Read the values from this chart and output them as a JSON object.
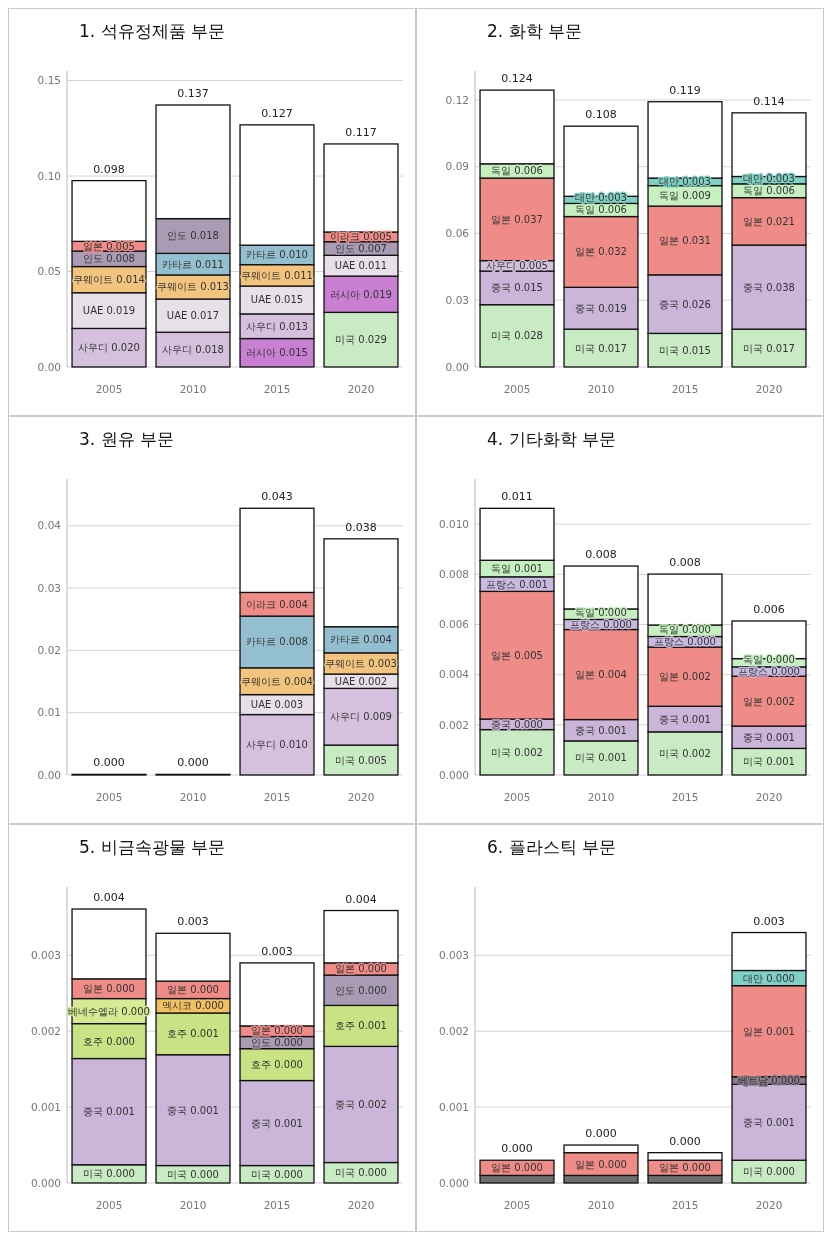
{
  "chart_data": [
    {
      "type": "bar",
      "stacked": true,
      "title": "1. 석유정제품 부문",
      "categories": [
        "2005",
        "2010",
        "2015",
        "2020"
      ],
      "ylim": [
        0,
        0.155
      ],
      "yticks": [
        {
          "value": 0,
          "label": "0.00"
        },
        {
          "value": 0.05,
          "label": "0.05"
        },
        {
          "value": 0.1,
          "label": "0.10"
        },
        {
          "value": 0.15,
          "label": "0.15"
        }
      ],
      "grid": "y",
      "totals": [
        "0.098",
        "0.137",
        "0.127",
        "0.117"
      ],
      "series": [
        {
          "color": "#c8ebc3",
          "values": [
            null,
            null,
            null,
            0.0286
          ],
          "value_labels": [
            null,
            null,
            null,
            "미국 0.029"
          ]
        },
        {
          "color": "#c97fd2",
          "values": [
            null,
            null,
            0.0149,
            0.019
          ],
          "value_labels": [
            null,
            null,
            "러시아 0.015",
            "러시아 0.019"
          ]
        },
        {
          "color": "#d5c0dd",
          "values": [
            0.0202,
            0.0182,
            0.0129,
            null
          ],
          "value_labels": [
            "사우디 0.020",
            "사우디 0.018",
            "사우디 0.013",
            null
          ]
        },
        {
          "color": "#e8e0e8",
          "values": [
            0.0187,
            0.0174,
            0.0146,
            0.0109
          ],
          "value_labels": [
            "UAE 0.019",
            "UAE 0.017",
            "UAE 0.015",
            "UAE 0.011"
          ]
        },
        {
          "color": "#f2c47e",
          "values": [
            0.0137,
            0.0126,
            0.0112,
            null
          ],
          "value_labels": [
            "쿠웨이트 0.014",
            "쿠웨이트 0.013",
            "쿠웨이트 0.011",
            null
          ]
        },
        {
          "color": "#94bfd0",
          "values": [
            null,
            0.0113,
            0.0102,
            null
          ],
          "value_labels": [
            null,
            "카타르 0.011",
            "카타르 0.010",
            null
          ]
        },
        {
          "color": "#a99bb3",
          "values": [
            0.0081,
            0.0182,
            null,
            0.0071
          ],
          "value_labels": [
            "인도 0.008",
            "인도 0.018",
            null,
            "인도 0.007"
          ]
        },
        {
          "color": "#ef8c87",
          "values": [
            0.0051,
            null,
            null,
            null
          ],
          "value_labels": [
            "일본 0.005",
            null,
            null,
            null
          ]
        },
        {
          "color": "#ef8c87",
          "values": [
            null,
            null,
            null,
            0.0051
          ],
          "value_labels": [
            null,
            null,
            null,
            "이라크 0.005"
          ]
        },
        {
          "color": "#ffffff",
          "values": [
            0.0318,
            0.0595,
            0.063,
            0.0461
          ]
        }
      ]
    },
    {
      "type": "bar",
      "stacked": true,
      "title": "2. 화학 부문",
      "categories": [
        "2005",
        "2010",
        "2015",
        "2020"
      ],
      "ylim": [
        0,
        0.133
      ],
      "yticks": [
        {
          "value": 0,
          "label": "0.00"
        },
        {
          "value": 0.03,
          "label": "0.03"
        },
        {
          "value": 0.06,
          "label": "0.06"
        },
        {
          "value": 0.09,
          "label": "0.09"
        },
        {
          "value": 0.12,
          "label": "0.12"
        }
      ],
      "grid": "y",
      "totals": [
        "0.124",
        "0.108",
        "0.119",
        "0.114"
      ],
      "series": [
        {
          "color": "#c8ebc3",
          "values": [
            0.028,
            0.017,
            0.0151,
            0.017
          ],
          "value_labels": [
            "미국 0.028",
            "미국 0.017",
            "미국 0.015",
            "미국 0.017"
          ]
        },
        {
          "color": "#cbb5d8",
          "values": [
            0.0151,
            0.0188,
            0.0263,
            0.0378
          ],
          "value_labels": [
            "중국 0.015",
            "중국 0.019",
            "중국 0.026",
            "중국 0.038"
          ]
        },
        {
          "color": "#d5c0dd",
          "values": [
            0.0047,
            null,
            null,
            null
          ],
          "value_labels": [
            "사우디 0.005",
            null,
            null,
            null
          ]
        },
        {
          "color": "#ef8c87",
          "values": [
            0.0371,
            0.0318,
            0.0309,
            0.0213
          ],
          "value_labels": [
            "일본 0.037",
            "일본 0.032",
            "일본 0.031",
            "일본 0.021"
          ]
        },
        {
          "color": "#c6f0c0",
          "values": [
            0.0064,
            0.0059,
            0.0092,
            0.0062
          ],
          "value_labels": [
            "독일 0.006",
            "독일 0.006",
            "독일 0.009",
            "독일 0.006"
          ]
        },
        {
          "color": "#7fd0c5",
          "values": [
            null,
            0.0032,
            0.0034,
            0.0033
          ],
          "value_labels": [
            null,
            "대만 0.003",
            "대만 0.003",
            "대만 0.003"
          ]
        },
        {
          "color": "#ffffff",
          "values": [
            0.0331,
            0.0315,
            0.0343,
            0.0286
          ]
        }
      ]
    },
    {
      "type": "bar",
      "stacked": true,
      "title": "3. 원유 부문",
      "categories": [
        "2005",
        "2010",
        "2015",
        "2020"
      ],
      "ylim": [
        0,
        0.0475
      ],
      "yticks": [
        {
          "value": 0,
          "label": "0.00"
        },
        {
          "value": 0.01,
          "label": "0.01"
        },
        {
          "value": 0.02,
          "label": "0.02"
        },
        {
          "value": 0.03,
          "label": "0.03"
        },
        {
          "value": 0.04,
          "label": "0.04"
        }
      ],
      "grid": "y",
      "totals": [
        "0.000",
        "0.000",
        "0.043",
        "0.038"
      ],
      "series": [
        {
          "color": "#c8ebc3",
          "values": [
            null,
            null,
            null,
            0.0048
          ],
          "value_labels": [
            null,
            null,
            null,
            "미국 0.005"
          ]
        },
        {
          "color": "#d5c0dd",
          "values": [
            null,
            null,
            0.0097,
            0.0091
          ],
          "value_labels": [
            null,
            null,
            "사우디 0.010",
            "사우디 0.009"
          ]
        },
        {
          "color": "#e8e0e8",
          "values": [
            null,
            null,
            0.0032,
            0.0023
          ],
          "value_labels": [
            null,
            null,
            "UAE 0.003",
            "UAE 0.002"
          ]
        },
        {
          "color": "#f2c47e",
          "values": [
            null,
            null,
            0.0043,
            0.0034
          ],
          "value_labels": [
            null,
            null,
            "쿠웨이트 0.004",
            "쿠웨이트 0.003"
          ]
        },
        {
          "color": "#94bfd0",
          "values": [
            null,
            null,
            0.0083,
            0.0042
          ],
          "value_labels": [
            null,
            null,
            "카타르 0.008",
            "카타르 0.004"
          ]
        },
        {
          "color": "#ef8c87",
          "values": [
            null,
            null,
            0.0038,
            null
          ],
          "value_labels": [
            null,
            null,
            "이라크 0.004",
            null
          ]
        },
        {
          "color": "#ffffff",
          "values": [
            0.0001,
            0.0001,
            0.0135,
            0.0141
          ]
        }
      ]
    },
    {
      "type": "bar",
      "stacked": true,
      "title": "4. 기타화학 부문",
      "categories": [
        "2005",
        "2010",
        "2015",
        "2020"
      ],
      "ylim": [
        0,
        0.0118
      ],
      "yticks": [
        {
          "value": 0,
          "label": "0.000"
        },
        {
          "value": 0.002,
          "label": "0.002"
        },
        {
          "value": 0.004,
          "label": "0.004"
        },
        {
          "value": 0.006,
          "label": "0.006"
        },
        {
          "value": 0.008,
          "label": "0.008"
        },
        {
          "value": 0.01,
          "label": "0.010"
        }
      ],
      "grid": "y",
      "totals": [
        "0.011",
        "0.008",
        "0.008",
        "0.006"
      ],
      "series": [
        {
          "color": "#c8ebc3",
          "values": [
            0.00181,
            0.00136,
            0.00172,
            0.00106
          ],
          "value_labels": [
            "미국 0.002",
            "미국 0.001",
            "미국 0.002",
            "미국 0.001"
          ]
        },
        {
          "color": "#cbb5d8",
          "values": [
            0.00042,
            0.00085,
            0.00102,
            0.00089
          ],
          "value_labels": [
            "중국 0.000",
            "중국 0.001",
            "중국 0.001",
            "중국 0.001"
          ]
        },
        {
          "color": "#ef8c87",
          "values": [
            0.00509,
            0.00359,
            0.00236,
            0.00199
          ],
          "value_labels": [
            "일본 0.005",
            "일본 0.004",
            "일본 0.002",
            "일본 0.002"
          ]
        },
        {
          "color": "#c9badf",
          "values": [
            0.00058,
            0.0004,
            0.00042,
            0.00037
          ],
          "value_labels": [
            "프랑스 0.001",
            "프랑스 0.000",
            "프랑스 0.000",
            "프랑스 0.000"
          ]
        },
        {
          "color": "#c6f0c0",
          "values": [
            0.00066,
            0.00042,
            0.00046,
            0.00033
          ],
          "value_labels": [
            "독일 0.001",
            "독일 0.000",
            "독일 0.000",
            "독일 0.000"
          ]
        },
        {
          "color": "#ffffff",
          "values": [
            0.00207,
            0.00171,
            0.00203,
            0.0015
          ]
        }
      ]
    },
    {
      "type": "bar",
      "stacked": true,
      "title": "5. 비금속광물 부문",
      "categories": [
        "2005",
        "2010",
        "2015",
        "2020"
      ],
      "ylim": [
        0,
        0.0039
      ],
      "yticks": [
        {
          "value": 0,
          "label": "0.000"
        },
        {
          "value": 0.001,
          "label": "0.001"
        },
        {
          "value": 0.002,
          "label": "0.002"
        },
        {
          "value": 0.003,
          "label": "0.003"
        }
      ],
      "grid": "y",
      "totals": [
        "0.004",
        "0.003",
        "0.003",
        "0.004"
      ],
      "series": [
        {
          "color": "#c8ebc3",
          "values": [
            0.00024,
            0.00023,
            0.00023,
            0.00027
          ],
          "value_labels": [
            "미국 0.000",
            "미국 0.000",
            "미국 0.000",
            "미국 0.000"
          ]
        },
        {
          "color": "#cbb5d8",
          "values": [
            0.0014,
            0.00146,
            0.00112,
            0.00153
          ],
          "value_labels": [
            "중국 0.001",
            "중국 0.001",
            "중국 0.001",
            "중국 0.002"
          ]
        },
        {
          "color": "#c9e384",
          "values": [
            0.00046,
            0.00055,
            0.00042,
            0.00054
          ],
          "value_labels": [
            "호주 0.000",
            "호주 0.001",
            "호주 0.000",
            "호주 0.001"
          ]
        },
        {
          "color": "#d6ea93",
          "values": [
            0.00033,
            null,
            null,
            null
          ],
          "value_labels": [
            "베네수엘라 0.000",
            null,
            null,
            null
          ]
        },
        {
          "color": "#f2c060",
          "values": [
            null,
            0.00019,
            null,
            null
          ],
          "value_labels": [
            null,
            "멕시코 0.000",
            null,
            null
          ]
        },
        {
          "color": "#a99bb3",
          "values": [
            null,
            null,
            0.00016,
            0.0004
          ],
          "value_labels": [
            null,
            null,
            "인도 0.000",
            "인도 0.000"
          ]
        },
        {
          "color": "#ef8c87",
          "values": [
            0.00026,
            0.00023,
            0.00014,
            0.00016
          ],
          "value_labels": [
            "일본 0.000",
            "일본 0.000",
            "일본 0.000",
            "일본 0.000"
          ]
        },
        {
          "color": "#ffffff",
          "values": [
            0.00092,
            0.00063,
            0.00083,
            0.00069
          ]
        }
      ]
    },
    {
      "type": "bar",
      "stacked": true,
      "title": "6. 플라스틱 부문",
      "categories": [
        "2005",
        "2010",
        "2015",
        "2020"
      ],
      "ylim": [
        0,
        0.0039
      ],
      "yticks": [
        {
          "value": 0,
          "label": "0.000"
        },
        {
          "value": 0.001,
          "label": "0.001"
        },
        {
          "value": 0.002,
          "label": "0.002"
        },
        {
          "value": 0.003,
          "label": "0.003"
        }
      ],
      "grid": "y",
      "totals": [
        "0.000",
        "0.000",
        "0.000",
        "0.003"
      ],
      "series": [
        {
          "color": "#6e6e6e",
          "values": [
            0.0001,
            0.0001,
            0.0001,
            null
          ]
        },
        {
          "color": "#c8ebc3",
          "values": [
            null,
            null,
            null,
            0.0003
          ],
          "value_labels": [
            null,
            null,
            null,
            "미국 0.000"
          ]
        },
        {
          "color": "#cbb5d8",
          "values": [
            null,
            null,
            null,
            0.001
          ],
          "value_labels": [
            null,
            null,
            null,
            "중국 0.001"
          ]
        },
        {
          "color": "#8a7a8a",
          "values": [
            null,
            null,
            null,
            0.0001
          ],
          "value_labels": [
            null,
            null,
            null,
            "베트남 0.000"
          ]
        },
        {
          "color": "#ef8c87",
          "values": [
            0.0002,
            0.0003,
            0.0002,
            0.0012
          ],
          "value_labels": [
            "일본 0.000",
            "일본 0.000",
            "일본 0.000",
            "일본 0.001"
          ]
        },
        {
          "color": "#7fd0c5",
          "values": [
            null,
            null,
            null,
            0.0002
          ],
          "value_labels": [
            null,
            null,
            null,
            "대만 0.000"
          ]
        },
        {
          "color": "#ffffff",
          "values": [
            null,
            0.0001,
            0.0001,
            0.0005
          ]
        }
      ]
    }
  ]
}
